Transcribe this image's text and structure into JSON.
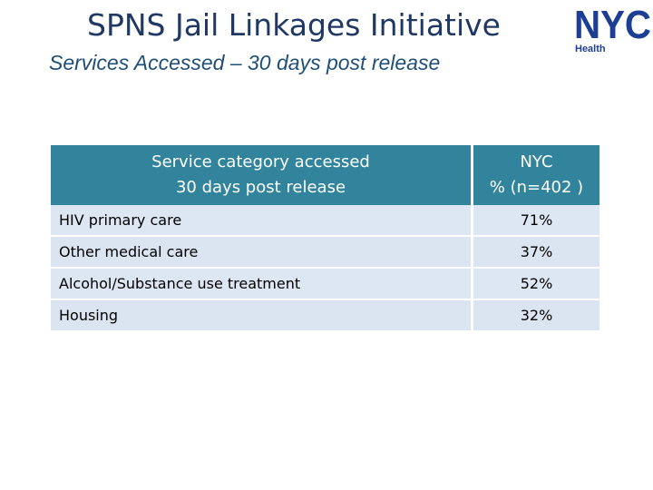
{
  "header": {
    "title": "SPNS Jail Linkages Initiative",
    "subtitle": "Services Accessed – 30 days post release"
  },
  "logo": {
    "text": "NYC",
    "sub": "Health",
    "color": "#1c3f94"
  },
  "table": {
    "headers": {
      "col1_line1": "Service category accessed",
      "col1_line2": "30 days post release",
      "col2_line1": "NYC",
      "col2_line2": "% (n=402 )"
    },
    "rows": [
      {
        "category": "HIV primary care",
        "value": "71%"
      },
      {
        "category": "Other medical care",
        "value": "37%"
      },
      {
        "category": "Alcohol/Substance use treatment",
        "value": "52%"
      },
      {
        "category": "Housing",
        "value": "32%"
      }
    ],
    "header_color": "#31849b",
    "row_color": "#dbe5f1"
  }
}
